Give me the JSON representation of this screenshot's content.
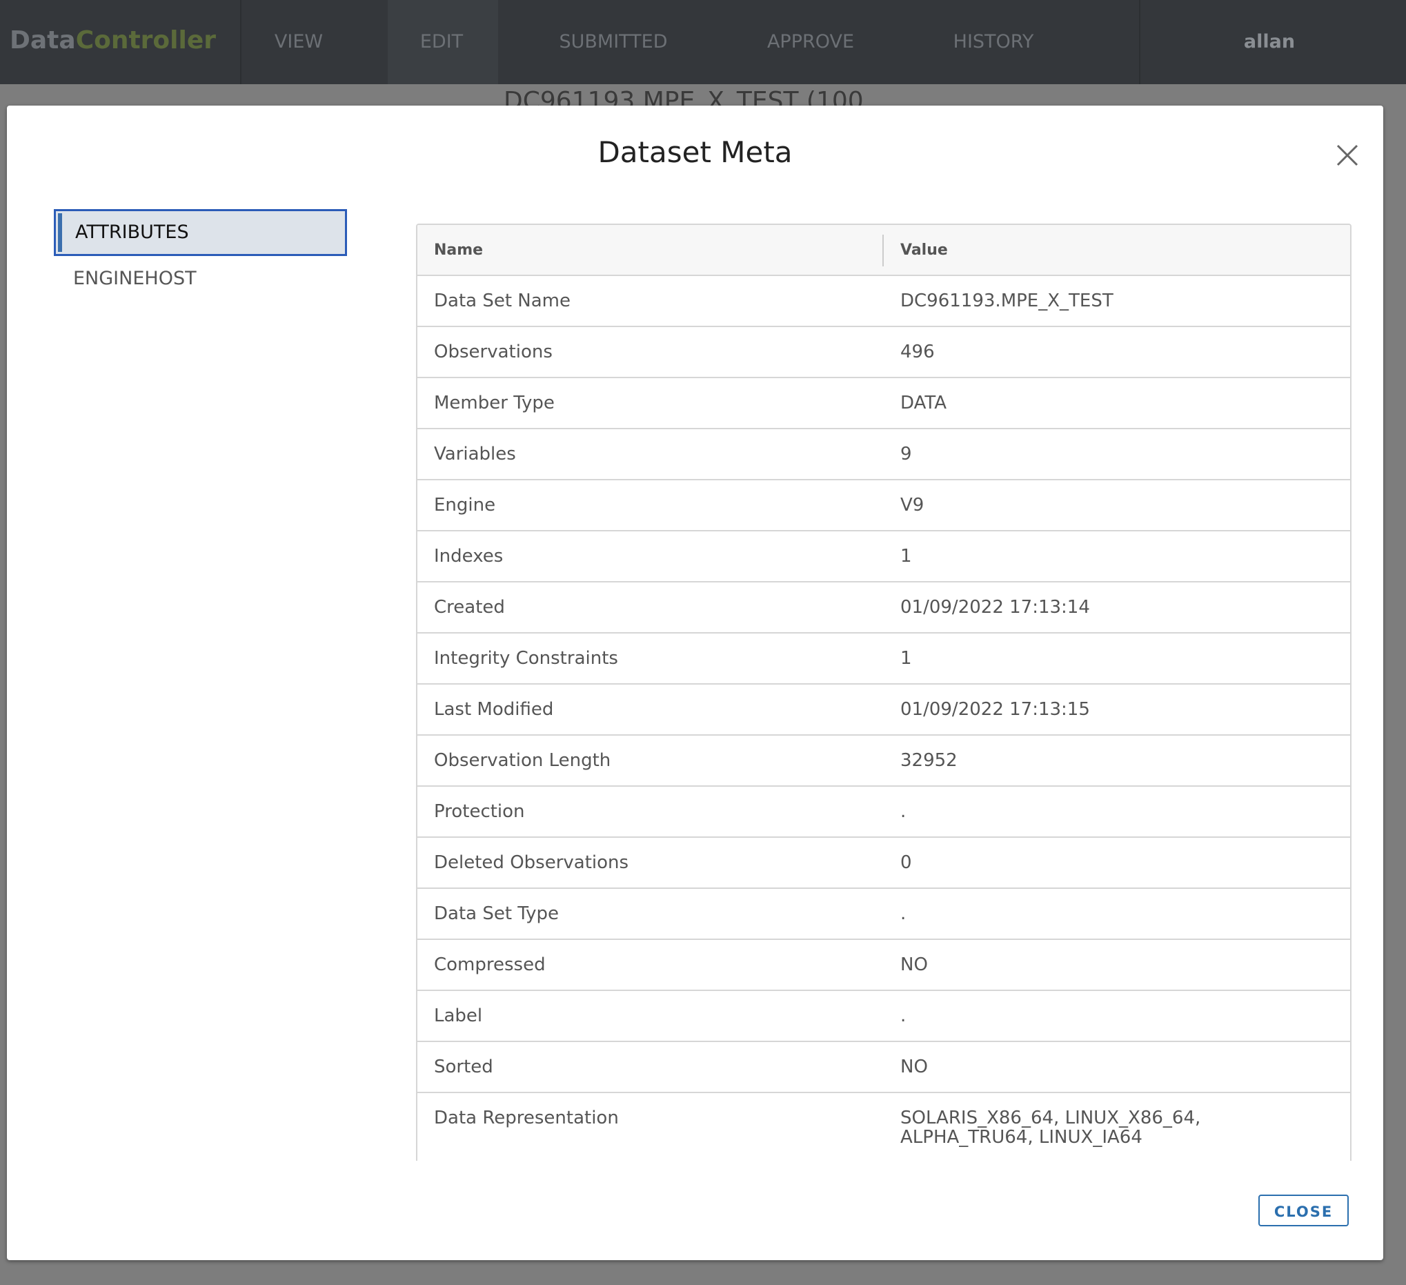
{
  "header": {
    "logo_prefix": "Data",
    "logo_suffix": "Controller",
    "nav": [
      "VIEW",
      "EDIT",
      "SUBMITTED",
      "APPROVE",
      "HISTORY"
    ],
    "user": "allan"
  },
  "background_title": "DC961193.MPE_X_TEST (100",
  "modal": {
    "title": "Dataset Meta",
    "tabs": [
      "ATTRIBUTES",
      "ENGINEHOST"
    ],
    "table": {
      "columns": [
        "Name",
        "Value"
      ],
      "rows": [
        [
          "Data Set Name",
          "DC961193.MPE_X_TEST"
        ],
        [
          "Observations",
          "496"
        ],
        [
          "Member Type",
          "DATA"
        ],
        [
          "Variables",
          "9"
        ],
        [
          "Engine",
          "V9"
        ],
        [
          "Indexes",
          "1"
        ],
        [
          "Created",
          "01/09/2022 17:13:14"
        ],
        [
          "Integrity Constraints",
          "1"
        ],
        [
          "Last Modified",
          "01/09/2022 17:13:15"
        ],
        [
          "Observation Length",
          "32952"
        ],
        [
          "Protection",
          "."
        ],
        [
          "Deleted Observations",
          "0"
        ],
        [
          "Data Set Type",
          "."
        ],
        [
          "Compressed",
          "NO"
        ],
        [
          "Label",
          "."
        ],
        [
          "Sorted",
          "NO"
        ],
        [
          "Data Representation",
          "SOLARIS_X86_64, LINUX_X86_64, ALPHA_TRU64, LINUX_IA64"
        ]
      ]
    },
    "close_button": "CLOSE"
  }
}
